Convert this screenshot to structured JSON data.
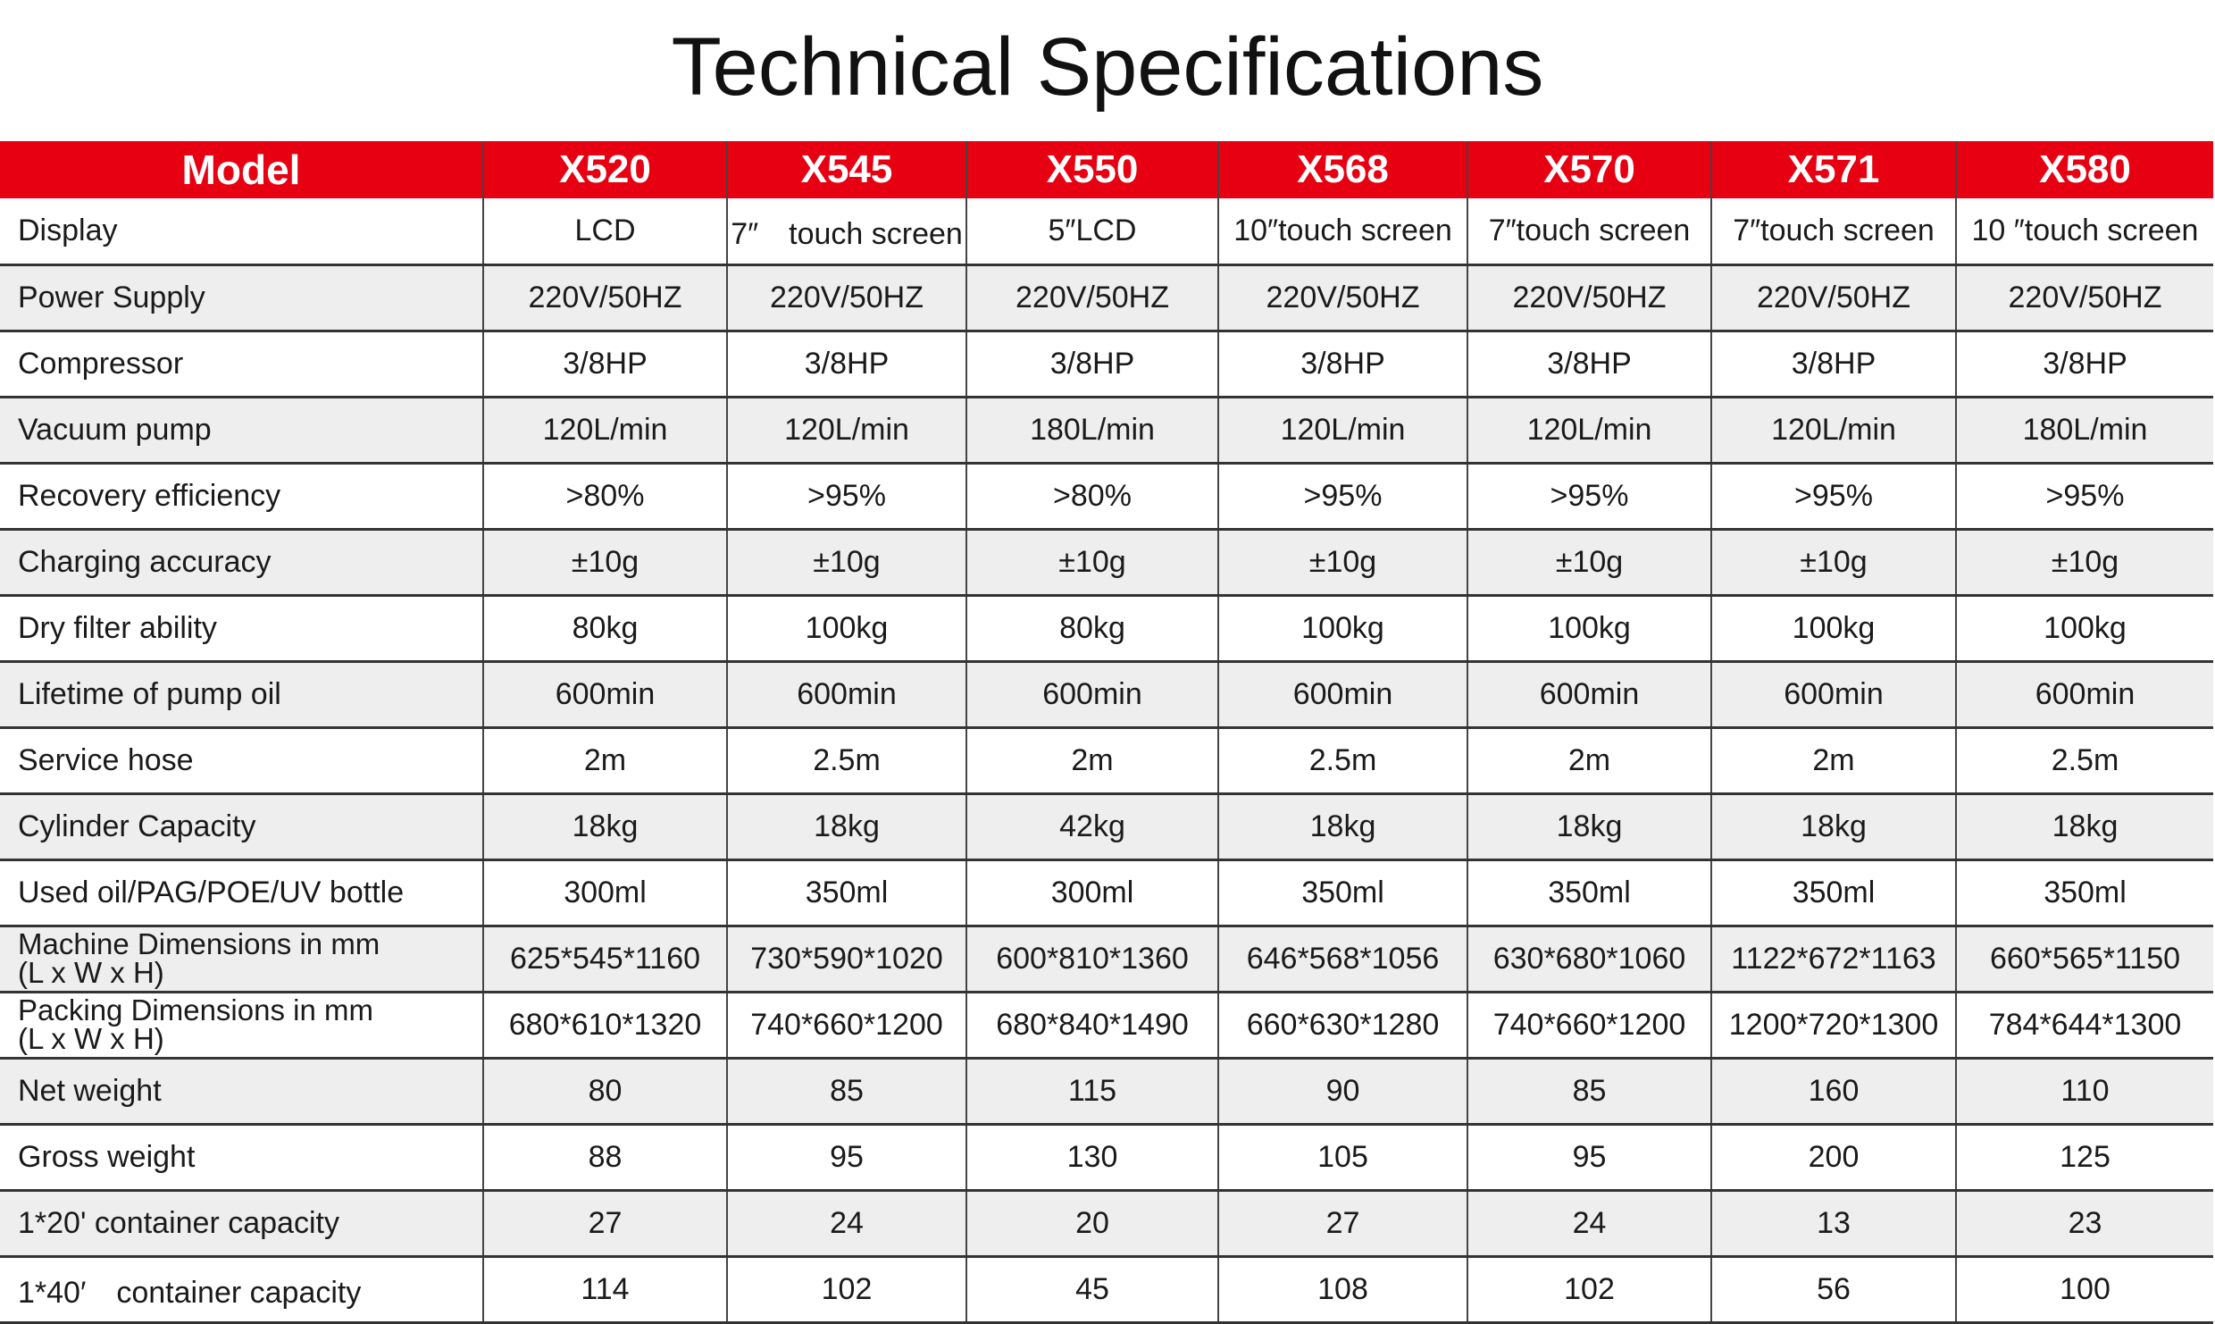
{
  "title": "Technical Specifications",
  "header": [
    "Model",
    "X520",
    "X545",
    "X550",
    "X568",
    "X570",
    "X571",
    "X580"
  ],
  "rows": [
    {
      "label": "Display",
      "values": [
        "LCD",
        "7″　touch screen",
        "5″LCD",
        "10″touch screen",
        "7″touch screen",
        "7″touch screen",
        "10 ″touch screen"
      ]
    },
    {
      "label": "Power Supply",
      "values": [
        "220V/50HZ",
        "220V/50HZ",
        "220V/50HZ",
        "220V/50HZ",
        "220V/50HZ",
        "220V/50HZ",
        "220V/50HZ"
      ]
    },
    {
      "label": "Compressor",
      "values": [
        "3/8HP",
        "3/8HP",
        "3/8HP",
        "3/8HP",
        "3/8HP",
        "3/8HP",
        "3/8HP"
      ]
    },
    {
      "label": "Vacuum pump",
      "values": [
        "120L/min",
        "120L/min",
        "180L/min",
        "120L/min",
        "120L/min",
        "120L/min",
        "180L/min"
      ]
    },
    {
      "label": "Recovery efficiency",
      "values": [
        ">80%",
        ">95%",
        ">80%",
        ">95%",
        ">95%",
        ">95%",
        ">95%"
      ]
    },
    {
      "label": "Charging accuracy",
      "values": [
        "±10g",
        "±10g",
        "±10g",
        "±10g",
        "±10g",
        "±10g",
        "±10g"
      ]
    },
    {
      "label": "Dry filter ability",
      "values": [
        "80kg",
        "100kg",
        "80kg",
        "100kg",
        "100kg",
        "100kg",
        "100kg"
      ]
    },
    {
      "label": "Lifetime of pump oil",
      "values": [
        "600min",
        "600min",
        "600min",
        "600min",
        "600min",
        "600min",
        "600min"
      ]
    },
    {
      "label": "Service hose",
      "values": [
        "2m",
        "2.5m",
        "2m",
        "2.5m",
        "2m",
        "2m",
        "2.5m"
      ]
    },
    {
      "label": "Cylinder Capacity",
      "values": [
        "18kg",
        "18kg",
        "42kg",
        "18kg",
        "18kg",
        "18kg",
        "18kg"
      ]
    },
    {
      "label": "Used oil/PAG/POE/UV bottle",
      "values": [
        "300ml",
        "350ml",
        "300ml",
        "350ml",
        "350ml",
        "350ml",
        "350ml"
      ]
    },
    {
      "label": "Machine Dimensions in mm",
      "label2": "(L x W x H)",
      "values": [
        "625*545*1160",
        "730*590*1020",
        "600*810*1360",
        "646*568*1056",
        "630*680*1060",
        "1122*672*1163",
        "660*565*1150"
      ]
    },
    {
      "label": "Packing Dimensions in mm",
      "label2": "(L x W x H)",
      "values": [
        "680*610*1320",
        "740*660*1200",
        "680*840*1490",
        "660*630*1280",
        "740*660*1200",
        "1200*720*1300",
        "784*644*1300"
      ]
    },
    {
      "label": "Net weight",
      "values": [
        "80",
        "85",
        "115",
        "90",
        "85",
        "160",
        "110"
      ]
    },
    {
      "label": "Gross weight",
      "values": [
        "88",
        "95",
        "130",
        "105",
        "95",
        "200",
        "125"
      ]
    },
    {
      "label": "1*20' container capacity",
      "values": [
        "27",
        "24",
        "20",
        "27",
        "24",
        "13",
        "23"
      ]
    },
    {
      "label": "1*40′　container capacity",
      "values": [
        "114",
        "102",
        "45",
        "108",
        "102",
        "56",
        "100"
      ]
    }
  ]
}
